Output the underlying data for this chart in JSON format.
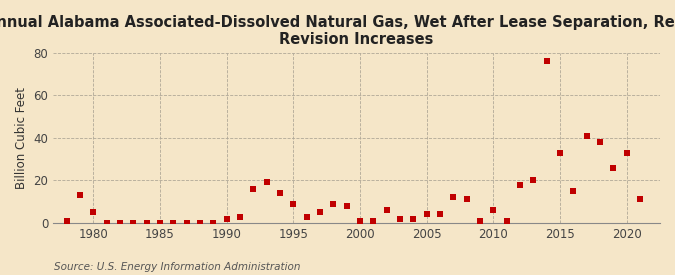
{
  "title": "Annual Alabama Associated-Dissolved Natural Gas, Wet After Lease Separation, Reserves\nRevision Increases",
  "ylabel": "Billion Cubic Feet",
  "source": "Source: U.S. Energy Information Administration",
  "background_color": "#f5e6c8",
  "plot_background_color": "#f5e6c8",
  "marker_color": "#c00000",
  "marker_size": 16,
  "years": [
    1978,
    1979,
    1980,
    1981,
    1982,
    1983,
    1984,
    1985,
    1986,
    1987,
    1988,
    1989,
    1990,
    1991,
    1992,
    1993,
    1994,
    1995,
    1996,
    1997,
    1998,
    1999,
    2000,
    2001,
    2002,
    2003,
    2004,
    2005,
    2006,
    2007,
    2008,
    2009,
    2010,
    2011,
    2012,
    2013,
    2014,
    2015,
    2016,
    2017,
    2018,
    2019,
    2020,
    2021
  ],
  "values": [
    1,
    13,
    5,
    0,
    0,
    0,
    0,
    0,
    0,
    0,
    0,
    0,
    2,
    3,
    16,
    19,
    14,
    9,
    3,
    5,
    9,
    8,
    1,
    1,
    6,
    2,
    2,
    4,
    4,
    12,
    11,
    1,
    6,
    1,
    18,
    20,
    76,
    33,
    15,
    41,
    38,
    26,
    33,
    11
  ],
  "xlim": [
    1977,
    2022.5
  ],
  "ylim": [
    0,
    80
  ],
  "yticks": [
    0,
    20,
    40,
    60,
    80
  ],
  "xticks": [
    1980,
    1985,
    1990,
    1995,
    2000,
    2005,
    2010,
    2015,
    2020
  ],
  "grid_color": "#b0a898",
  "title_fontsize": 10.5,
  "tick_fontsize": 8.5,
  "ylabel_fontsize": 8.5,
  "source_fontsize": 7.5
}
